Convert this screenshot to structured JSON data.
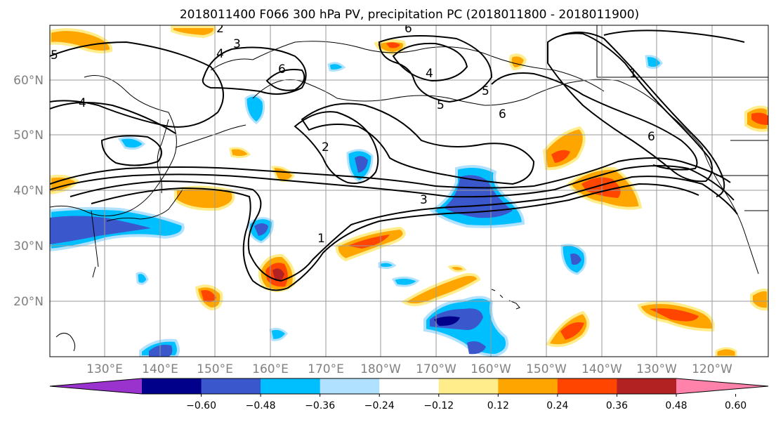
{
  "title": "2018011400 F066 300 hPa PV, precipitation PC (2018011800 - 2018011900)",
  "map": {
    "lat_labels": [
      "20°N",
      "30°N",
      "40°N",
      "50°N",
      "60°N"
    ],
    "lon_labels": [
      "130°E",
      "140°E",
      "150°E",
      "160°E",
      "170°E",
      "180°W",
      "170°W",
      "160°W",
      "150°W",
      "140°W",
      "130°W",
      "120°W"
    ],
    "gridlines": true,
    "contour_labels": [
      "2",
      "3",
      "4",
      "5",
      "6",
      "6",
      "4",
      "5",
      "6",
      "1",
      "6",
      "2",
      "3",
      "1",
      "4",
      "5"
    ]
  },
  "colorbar": {
    "tick_labels": [
      "−0.60",
      "−0.48",
      "−0.36",
      "−0.24",
      "−0.12",
      "0.12",
      "0.24",
      "0.36",
      "0.48",
      "0.60"
    ],
    "colors": [
      "#9a32cd",
      "#00008b",
      "#3a57cc",
      "#00bfff",
      "#b0e2ff",
      "#ffffff",
      "#ffec8b",
      "#ffa500",
      "#ff4500",
      "#b22222",
      "#ff82ab"
    ],
    "extend": "both"
  }
}
